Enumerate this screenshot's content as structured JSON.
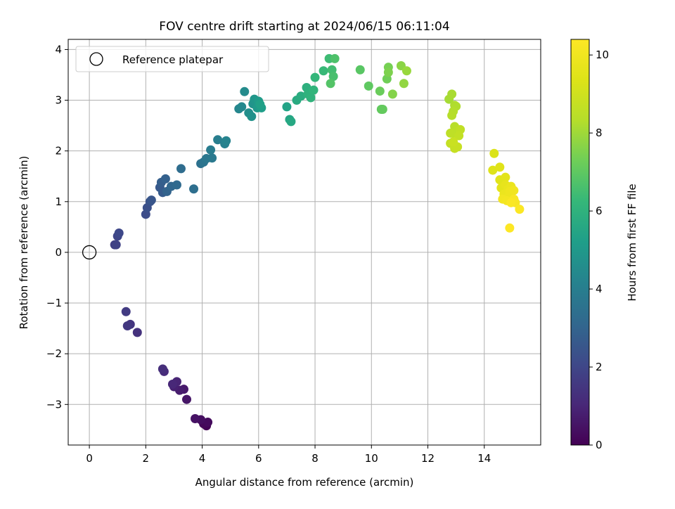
{
  "chart_data": {
    "type": "scatter",
    "title": "FOV centre drift starting at 2024/06/15 06:11:04",
    "xlabel": "Angular distance from reference (arcmin)",
    "ylabel": "Rotation from reference (arcmin)",
    "xlim": [
      -0.75,
      16
    ],
    "ylim": [
      -3.8,
      4.2
    ],
    "x_ticks": [
      0,
      2,
      4,
      6,
      8,
      10,
      12,
      14
    ],
    "x_tick_labels": [
      "0",
      "2",
      "4",
      "6",
      "8",
      "10",
      "12",
      "14"
    ],
    "y_ticks": [
      -3,
      -2,
      -1,
      0,
      1,
      2,
      3,
      4
    ],
    "y_tick_labels": [
      "−3",
      "−2",
      "−1",
      "0",
      "1",
      "2",
      "3",
      "4"
    ],
    "grid": true,
    "legend": {
      "placement": "top-left",
      "entries": [
        {
          "label": "Reference platepar",
          "marker": "open-circle",
          "x": 0,
          "y": 0
        }
      ]
    },
    "colorbar": {
      "label": "Hours from first FF file",
      "colormap": "viridis",
      "range": [
        0,
        10.4
      ],
      "ticks": [
        0,
        2,
        4,
        6,
        8,
        10
      ],
      "tick_labels": [
        "0",
        "2",
        "4",
        "6",
        "8",
        "10"
      ]
    },
    "points": [
      {
        "x": 4.15,
        "y": -3.42,
        "h": 0.05
      },
      {
        "x": 4.05,
        "y": -3.38,
        "h": 0.15
      },
      {
        "x": 4.2,
        "y": -3.35,
        "h": 0.25
      },
      {
        "x": 3.95,
        "y": -3.3,
        "h": 0.35
      },
      {
        "x": 3.75,
        "y": -3.28,
        "h": 0.45
      },
      {
        "x": 3.45,
        "y": -2.9,
        "h": 0.55
      },
      {
        "x": 3.35,
        "y": -2.7,
        "h": 0.65
      },
      {
        "x": 3.2,
        "y": -2.72,
        "h": 0.75
      },
      {
        "x": 3.0,
        "y": -2.65,
        "h": 0.85
      },
      {
        "x": 3.1,
        "y": -2.55,
        "h": 0.95
      },
      {
        "x": 2.95,
        "y": -2.6,
        "h": 1.05
      },
      {
        "x": 2.65,
        "y": -2.35,
        "h": 1.15
      },
      {
        "x": 2.6,
        "y": -2.3,
        "h": 1.25
      },
      {
        "x": 1.7,
        "y": -1.58,
        "h": 1.35
      },
      {
        "x": 1.45,
        "y": -1.42,
        "h": 1.45
      },
      {
        "x": 1.35,
        "y": -1.45,
        "h": 1.55
      },
      {
        "x": 1.3,
        "y": -1.17,
        "h": 1.65
      },
      {
        "x": 0.9,
        "y": 0.15,
        "h": 1.75
      },
      {
        "x": 0.95,
        "y": 0.15,
        "h": 1.85
      },
      {
        "x": 1.0,
        "y": 0.32,
        "h": 1.95
      },
      {
        "x": 1.05,
        "y": 0.38,
        "h": 2.05
      },
      {
        "x": 2.0,
        "y": 0.75,
        "h": 2.2
      },
      {
        "x": 2.05,
        "y": 0.88,
        "h": 2.3
      },
      {
        "x": 2.15,
        "y": 1.0,
        "h": 2.4
      },
      {
        "x": 2.2,
        "y": 1.03,
        "h": 2.5
      },
      {
        "x": 2.5,
        "y": 1.28,
        "h": 2.6
      },
      {
        "x": 2.6,
        "y": 1.18,
        "h": 2.7
      },
      {
        "x": 2.55,
        "y": 1.38,
        "h": 2.8
      },
      {
        "x": 2.7,
        "y": 1.45,
        "h": 2.9
      },
      {
        "x": 2.75,
        "y": 1.2,
        "h": 3.0
      },
      {
        "x": 2.9,
        "y": 1.3,
        "h": 3.1
      },
      {
        "x": 3.1,
        "y": 1.33,
        "h": 3.2
      },
      {
        "x": 3.25,
        "y": 1.65,
        "h": 3.3
      },
      {
        "x": 3.7,
        "y": 1.25,
        "h": 3.4
      },
      {
        "x": 3.95,
        "y": 1.75,
        "h": 3.5
      },
      {
        "x": 4.05,
        "y": 1.78,
        "h": 3.6
      },
      {
        "x": 4.15,
        "y": 1.85,
        "h": 3.7
      },
      {
        "x": 4.35,
        "y": 1.86,
        "h": 3.8
      },
      {
        "x": 4.3,
        "y": 2.02,
        "h": 3.9
      },
      {
        "x": 4.55,
        "y": 2.22,
        "h": 4.0
      },
      {
        "x": 4.8,
        "y": 2.14,
        "h": 4.1
      },
      {
        "x": 4.85,
        "y": 2.2,
        "h": 4.2
      },
      {
        "x": 5.3,
        "y": 2.83,
        "h": 4.3
      },
      {
        "x": 5.4,
        "y": 2.87,
        "h": 4.4
      },
      {
        "x": 5.5,
        "y": 3.17,
        "h": 4.5
      },
      {
        "x": 5.65,
        "y": 2.75,
        "h": 4.6
      },
      {
        "x": 5.75,
        "y": 2.68,
        "h": 4.7
      },
      {
        "x": 5.8,
        "y": 2.93,
        "h": 4.8
      },
      {
        "x": 5.85,
        "y": 3.02,
        "h": 4.9
      },
      {
        "x": 5.95,
        "y": 2.85,
        "h": 5.0
      },
      {
        "x": 6.0,
        "y": 2.98,
        "h": 5.1
      },
      {
        "x": 6.1,
        "y": 2.85,
        "h": 5.2
      },
      {
        "x": 6.05,
        "y": 2.92,
        "h": 5.3
      },
      {
        "x": 7.0,
        "y": 2.87,
        "h": 5.4
      },
      {
        "x": 7.1,
        "y": 2.62,
        "h": 5.5
      },
      {
        "x": 7.15,
        "y": 2.58,
        "h": 5.6
      },
      {
        "x": 7.35,
        "y": 3.0,
        "h": 5.7
      },
      {
        "x": 7.5,
        "y": 3.08,
        "h": 5.8
      },
      {
        "x": 7.7,
        "y": 3.25,
        "h": 5.9
      },
      {
        "x": 7.75,
        "y": 3.12,
        "h": 6.0
      },
      {
        "x": 7.85,
        "y": 3.05,
        "h": 6.05
      },
      {
        "x": 7.95,
        "y": 3.2,
        "h": 6.1
      },
      {
        "x": 8.0,
        "y": 3.45,
        "h": 6.2
      },
      {
        "x": 8.3,
        "y": 3.58,
        "h": 6.3
      },
      {
        "x": 8.5,
        "y": 3.82,
        "h": 6.4
      },
      {
        "x": 8.6,
        "y": 3.6,
        "h": 6.5
      },
      {
        "x": 8.65,
        "y": 3.47,
        "h": 6.6
      },
      {
        "x": 8.7,
        "y": 3.82,
        "h": 6.7
      },
      {
        "x": 8.55,
        "y": 3.33,
        "h": 6.8
      },
      {
        "x": 9.6,
        "y": 3.6,
        "h": 6.9
      },
      {
        "x": 9.9,
        "y": 3.28,
        "h": 7.0
      },
      {
        "x": 10.35,
        "y": 2.82,
        "h": 7.05
      },
      {
        "x": 10.4,
        "y": 2.82,
        "h": 7.1
      },
      {
        "x": 10.3,
        "y": 3.18,
        "h": 7.2
      },
      {
        "x": 10.55,
        "y": 3.42,
        "h": 7.3
      },
      {
        "x": 10.6,
        "y": 3.65,
        "h": 7.4
      },
      {
        "x": 10.6,
        "y": 3.55,
        "h": 7.5
      },
      {
        "x": 10.75,
        "y": 3.12,
        "h": 7.6
      },
      {
        "x": 11.05,
        "y": 3.68,
        "h": 7.7
      },
      {
        "x": 11.15,
        "y": 3.33,
        "h": 7.8
      },
      {
        "x": 11.25,
        "y": 3.58,
        "h": 7.9
      },
      {
        "x": 12.75,
        "y": 3.02,
        "h": 8.1
      },
      {
        "x": 12.85,
        "y": 3.12,
        "h": 8.15
      },
      {
        "x": 12.95,
        "y": 2.9,
        "h": 8.2
      },
      {
        "x": 13.0,
        "y": 2.88,
        "h": 8.25
      },
      {
        "x": 12.9,
        "y": 2.78,
        "h": 8.3
      },
      {
        "x": 12.85,
        "y": 2.7,
        "h": 8.35
      },
      {
        "x": 12.95,
        "y": 2.48,
        "h": 8.4
      },
      {
        "x": 13.05,
        "y": 2.4,
        "h": 8.45
      },
      {
        "x": 12.9,
        "y": 2.35,
        "h": 8.5
      },
      {
        "x": 12.8,
        "y": 2.35,
        "h": 8.55
      },
      {
        "x": 13.15,
        "y": 2.42,
        "h": 8.6
      },
      {
        "x": 13.1,
        "y": 2.3,
        "h": 8.65
      },
      {
        "x": 12.8,
        "y": 2.15,
        "h": 8.7
      },
      {
        "x": 12.95,
        "y": 2.05,
        "h": 8.75
      },
      {
        "x": 13.05,
        "y": 2.08,
        "h": 8.8
      },
      {
        "x": 12.9,
        "y": 2.18,
        "h": 8.85
      },
      {
        "x": 14.35,
        "y": 1.95,
        "h": 9.3
      },
      {
        "x": 14.3,
        "y": 1.62,
        "h": 9.4
      },
      {
        "x": 14.55,
        "y": 1.68,
        "h": 9.45
      },
      {
        "x": 14.55,
        "y": 1.43,
        "h": 9.5
      },
      {
        "x": 14.75,
        "y": 1.48,
        "h": 9.55
      },
      {
        "x": 14.6,
        "y": 1.27,
        "h": 9.6
      },
      {
        "x": 14.75,
        "y": 1.33,
        "h": 9.7
      },
      {
        "x": 14.85,
        "y": 1.25,
        "h": 9.75
      },
      {
        "x": 14.95,
        "y": 1.3,
        "h": 9.8
      },
      {
        "x": 14.7,
        "y": 1.15,
        "h": 9.85
      },
      {
        "x": 14.85,
        "y": 1.1,
        "h": 9.9
      },
      {
        "x": 14.9,
        "y": 1.2,
        "h": 9.95
      },
      {
        "x": 15.05,
        "y": 1.22,
        "h": 10.0
      },
      {
        "x": 14.65,
        "y": 1.05,
        "h": 10.05
      },
      {
        "x": 14.8,
        "y": 1.02,
        "h": 10.1
      },
      {
        "x": 15.0,
        "y": 1.0,
        "h": 10.15
      },
      {
        "x": 15.1,
        "y": 0.98,
        "h": 10.2
      },
      {
        "x": 15.05,
        "y": 1.05,
        "h": 10.25
      },
      {
        "x": 14.95,
        "y": 0.98,
        "h": 10.3
      },
      {
        "x": 15.25,
        "y": 0.85,
        "h": 10.35
      },
      {
        "x": 14.9,
        "y": 0.48,
        "h": 10.4
      }
    ]
  }
}
